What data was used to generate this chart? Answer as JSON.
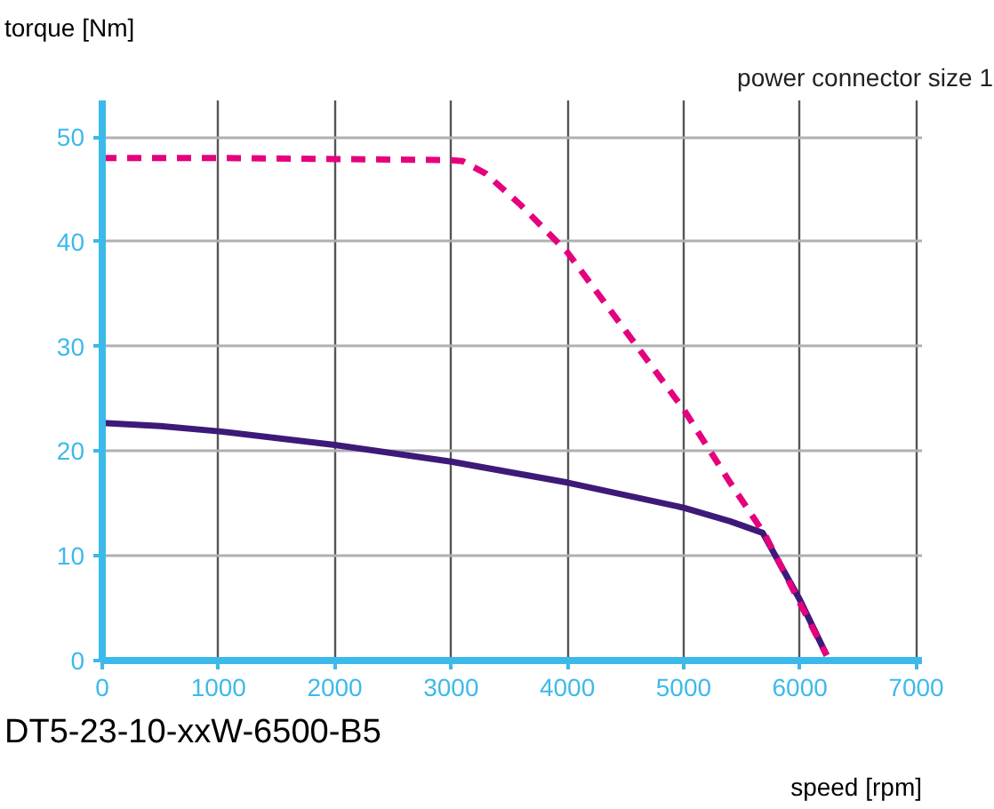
{
  "chart_data": {
    "type": "line",
    "title": "power connector size 1",
    "xlabel": "speed [rpm]",
    "ylabel": "torque [Nm]",
    "annotations": [
      "DT5-23-10-xxW-6500-B5"
    ],
    "xlim": [
      0,
      7050
    ],
    "ylim": [
      0,
      53.5
    ],
    "xticks": [
      0,
      1000,
      2000,
      3000,
      4000,
      5000,
      6000,
      7000
    ],
    "yticks": [
      0,
      10,
      20,
      30,
      40,
      50
    ],
    "grid": true,
    "series": [
      {
        "color": "#e5007e",
        "line_style": "dashed",
        "x": [
          0,
          1000,
          2000,
          3000,
          3100,
          3300,
          3600,
          4000,
          4500,
          5000,
          5400,
          5700,
          6000,
          6230
        ],
        "values": [
          48,
          48,
          47.9,
          47.8,
          47.7,
          46.5,
          43.5,
          39,
          31.5,
          24,
          17,
          12,
          5.5,
          0.5
        ]
      },
      {
        "color": "#3d1a78",
        "line_style": "solid",
        "x": [
          0,
          500,
          1000,
          2000,
          3000,
          4000,
          5000,
          5400,
          5680,
          6000,
          6230
        ],
        "values": [
          22.7,
          22.4,
          21.9,
          20.6,
          19,
          17,
          14.6,
          13.3,
          12.2,
          5.8,
          0.5
        ]
      }
    ]
  }
}
